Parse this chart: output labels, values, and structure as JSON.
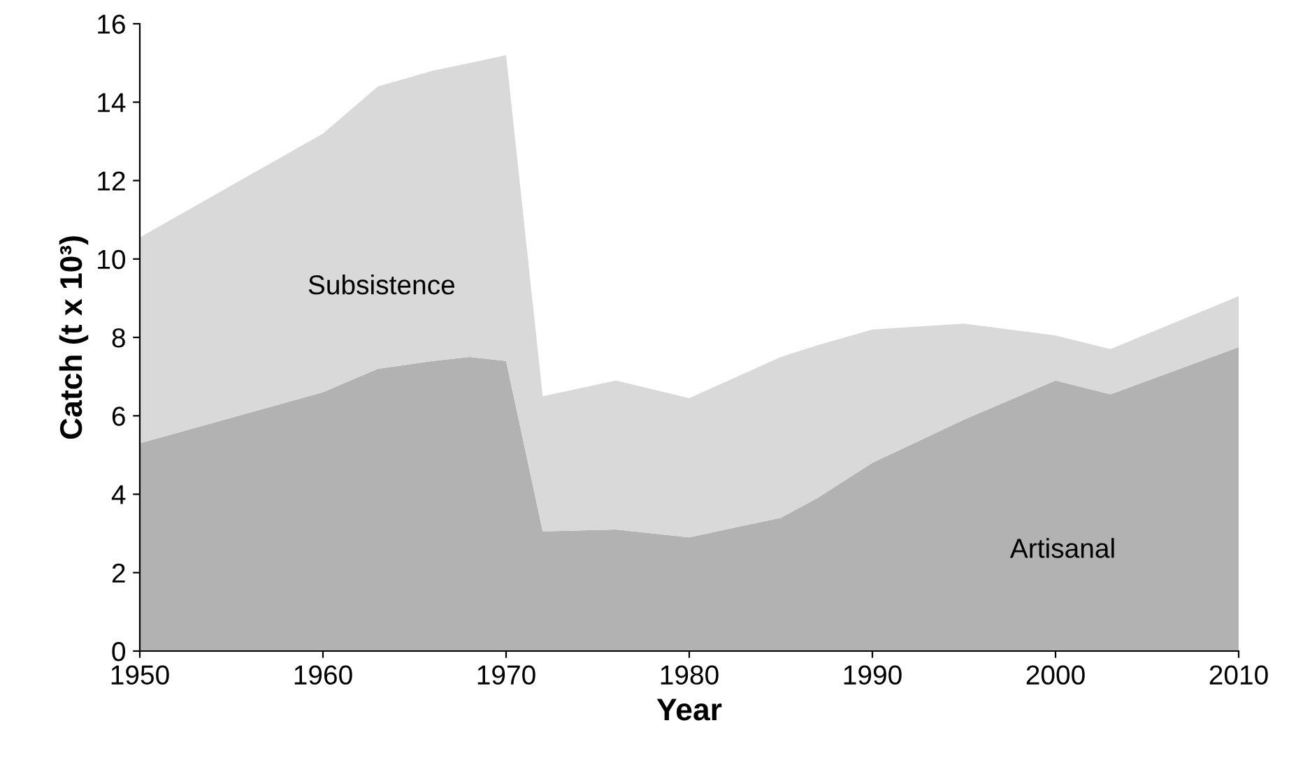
{
  "chart_data": {
    "type": "area",
    "stacked": true,
    "xlabel": "Year",
    "ylabel": "Catch (t x 10³)",
    "x": [
      1950,
      1960,
      1963,
      1966,
      1968,
      1970,
      1972,
      1976,
      1980,
      1985,
      1987,
      1990,
      1995,
      2000,
      2003,
      2010
    ],
    "series": [
      {
        "name": "Artisanal",
        "color": "#b2b2b2",
        "values": [
          5.3,
          6.6,
          7.2,
          7.4,
          7.5,
          7.4,
          3.05,
          3.1,
          2.9,
          3.4,
          3.9,
          4.8,
          5.9,
          6.9,
          6.55,
          7.75
        ]
      },
      {
        "name": "Subsistence",
        "color": "#d9d9d9",
        "values": [
          5.25,
          6.6,
          7.2,
          7.4,
          7.5,
          7.8,
          3.45,
          3.8,
          3.55,
          4.1,
          3.9,
          3.4,
          2.45,
          1.15,
          1.15,
          1.3
        ]
      }
    ],
    "xlim": [
      1950,
      2010
    ],
    "xticks": [
      1950,
      1960,
      1970,
      1980,
      1990,
      2000,
      2010
    ],
    "ylim": [
      0,
      16
    ],
    "yticks": [
      0,
      2,
      4,
      6,
      8,
      10,
      12,
      14,
      16
    ],
    "grid": false,
    "legend": false
  }
}
